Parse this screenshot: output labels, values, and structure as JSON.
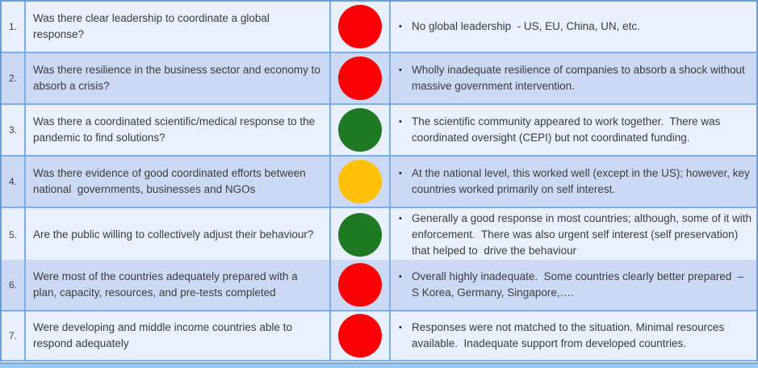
{
  "table": {
    "bullet": "•",
    "colors": {
      "red": "#fb0005",
      "green": "#1e7a23",
      "yellow": "#ffc105",
      "row_light": "#e9effb",
      "row_dark": "#cbd9f4"
    },
    "rows": [
      {
        "num": "1.",
        "question": "Was there clear leadership to coordinate a global response?",
        "status": "red",
        "answer": "No global leadership  - US, EU, China, UN, etc."
      },
      {
        "num": "2.",
        "question": "Was there resilience in the business sector and economy to absorb a crisis?",
        "status": "red",
        "answer": "Wholly inadequate resilience of companies to absorb a shock without massive government intervention."
      },
      {
        "num": "3.",
        "question": "Was there a coordinated scientific/medical response to the pandemic to find solutions?",
        "status": "green",
        "answer": "The scientific community appeared to work together.  There was coordinated oversight (CEPI) but not coordinated funding."
      },
      {
        "num": "4.",
        "question": "Was there evidence of good coordinated efforts between national  governments, businesses and NGOs",
        "status": "yellow",
        "answer": "At the national level, this worked well (except in the US); however, key countries worked primarily on self interest."
      },
      {
        "num": "5.",
        "question": "Are the public willing to collectively adjust their behaviour?",
        "status": "green",
        "answer": "Generally a good response in most countries; although, some of it with enforcement.  There was also urgent self interest (self preservation) that helped to  drive the behaviour"
      },
      {
        "num": "6.",
        "question": "Were most of the countries adequately prepared with a plan, capacity, resources, and pre-tests completed",
        "status": "red",
        "answer": "Overall highly inadequate.  Some countries clearly better prepared  – S Korea, Germany, Singapore,…."
      },
      {
        "num": "7.",
        "question": "Were developing and middle income countries able to respond adequately",
        "status": "red",
        "answer": "Responses were not matched to the situation. Minimal resources available.  Inadequate support from developed countries."
      }
    ]
  }
}
